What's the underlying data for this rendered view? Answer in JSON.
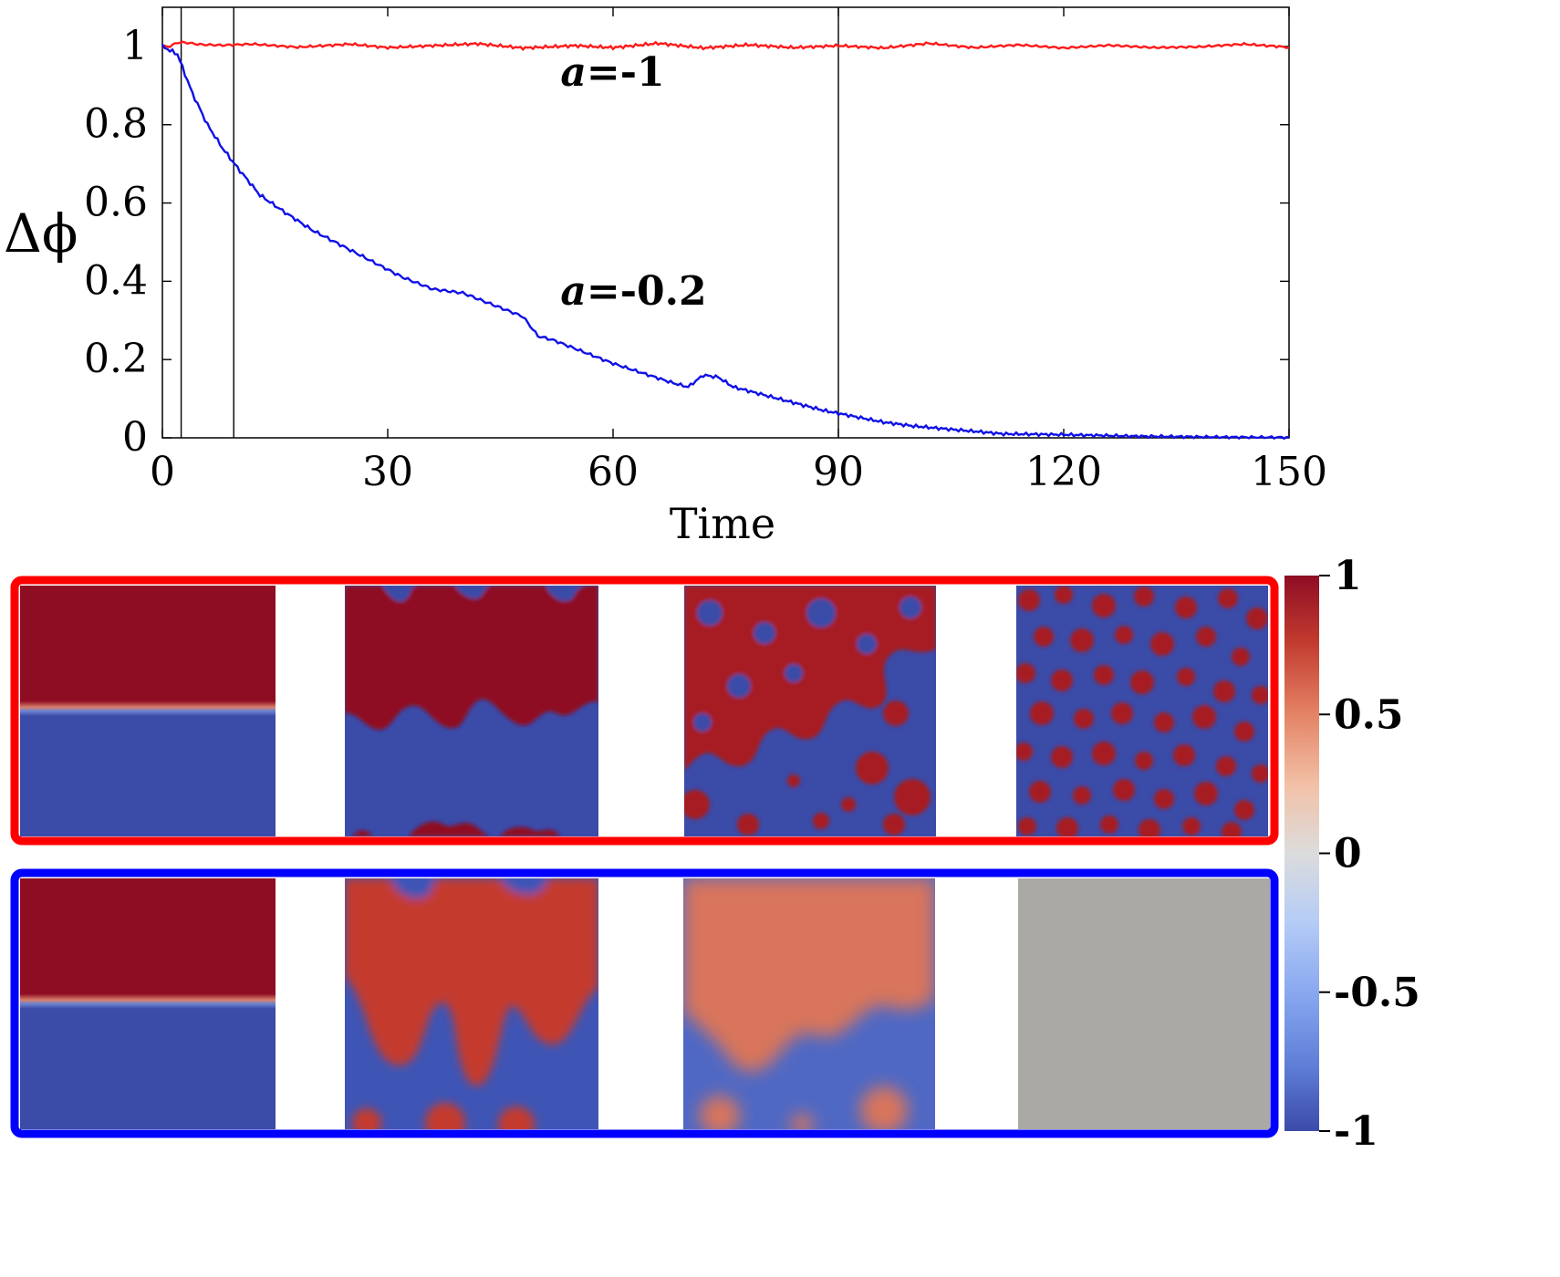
{
  "colors": {
    "series_a1": "#ff1a1a",
    "series_a02": "#1010e8",
    "colormap_high": "#8e0d23",
    "colormap_mid": "#dcdcdc",
    "colormap_low": "#3b4ba8",
    "frame_red": "#ff0000",
    "frame_blue": "#0000ff"
  },
  "chart_data": {
    "type": "line",
    "title": "",
    "xlabel": "Time",
    "ylabel": "Δϕ",
    "xlim": [
      0,
      150
    ],
    "ylim": [
      0,
      1.1
    ],
    "xticks": [
      "0",
      "30",
      "60",
      "90",
      "120",
      "150"
    ],
    "yticks": [
      "0",
      "0.2",
      "0.4",
      "0.6",
      "0.8",
      "1"
    ],
    "xtick_values": [
      0,
      30,
      60,
      90,
      120,
      150
    ],
    "ytick_values": [
      0,
      0.2,
      0.4,
      0.6,
      0.8,
      1
    ],
    "vlines": [
      2.5,
      9.5,
      90
    ],
    "series": [
      {
        "name": "a=-1",
        "label_prefix": "a",
        "label_suffix": "=-1",
        "label_pos": [
          53,
          0.9
        ],
        "x": [
          0,
          1,
          2,
          3,
          5,
          8,
          12,
          18,
          25,
          30,
          36,
          42,
          48,
          55,
          60,
          66,
          72,
          78,
          84,
          90,
          96,
          102,
          108,
          114,
          120,
          126,
          132,
          138,
          144,
          150
        ],
        "values": [
          1.0,
          1.0,
          1.01,
          1.01,
          1.005,
          1.003,
          1.006,
          0.998,
          1.006,
          0.997,
          1.002,
          1.007,
          0.996,
          1.002,
          0.997,
          1.008,
          0.996,
          1.004,
          0.997,
          1.002,
          0.996,
          1.008,
          0.997,
          1.004,
          0.996,
          1.003,
          0.997,
          0.999,
          1.006,
          0.998
        ]
      },
      {
        "name": "a=-0.2",
        "label_prefix": "a",
        "label_suffix": "=-0.2",
        "label_pos": [
          53,
          0.34
        ],
        "x": [
          0,
          2,
          4,
          6,
          8,
          10,
          13,
          16,
          20,
          24,
          28,
          32,
          36,
          40,
          44,
          48,
          50,
          52,
          56,
          60,
          64,
          68,
          70,
          72,
          74,
          76,
          80,
          84,
          88,
          92,
          96,
          100,
          106,
          112,
          120,
          130,
          140,
          150
        ],
        "values": [
          1.0,
          0.98,
          0.88,
          0.8,
          0.74,
          0.69,
          0.62,
          0.58,
          0.53,
          0.49,
          0.45,
          0.41,
          0.38,
          0.37,
          0.34,
          0.31,
          0.26,
          0.25,
          0.22,
          0.19,
          0.165,
          0.14,
          0.13,
          0.16,
          0.155,
          0.13,
          0.11,
          0.09,
          0.07,
          0.055,
          0.04,
          0.03,
          0.02,
          0.01,
          0.008,
          0.004,
          0.002,
          0.001
        ]
      }
    ],
    "colorbar": {
      "ticks": [
        "1",
        "0.5",
        "0",
        "-0.5",
        "-1"
      ],
      "tick_values": [
        1,
        0.5,
        0,
        -0.5,
        -1
      ]
    },
    "snapshots": [
      {
        "name": "a=-1",
        "frame": "red",
        "panels": [
          "initial sharp interface",
          "rough interface",
          "fragmented domains",
          "fully mixed, sharp domains"
        ]
      },
      {
        "name": "a=-0.2",
        "frame": "blue",
        "panels": [
          "initial sharp interface",
          "diffuse fingering",
          "faded domains",
          "uniform gray (mixed)"
        ]
      }
    ]
  }
}
